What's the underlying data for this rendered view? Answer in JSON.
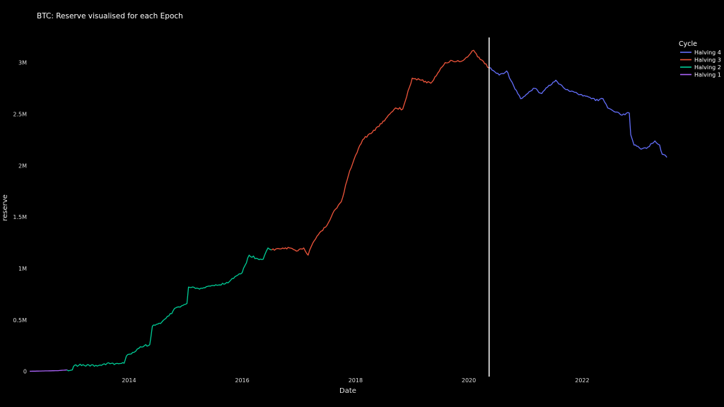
{
  "chart_data": {
    "type": "line",
    "title": "BTC: Reserve visualised for each Epoch",
    "xlabel": "Date",
    "ylabel": "reserve",
    "xlim": [
      "2012-04-01",
      "2023-08-01"
    ],
    "ylim": [
      -50000,
      3300000
    ],
    "x_ticks": [
      "2014",
      "2016",
      "2018",
      "2020",
      "2022"
    ],
    "y_ticks": [
      {
        "value": 0,
        "label": "0"
      },
      {
        "value": 500000,
        "label": "0.5M"
      },
      {
        "value": 1000000,
        "label": "1M"
      },
      {
        "value": 1500000,
        "label": "1.5M"
      },
      {
        "value": 2000000,
        "label": "2M"
      },
      {
        "value": 2500000,
        "label": "2.5M"
      },
      {
        "value": 3000000,
        "label": "3M"
      }
    ],
    "grid": false,
    "legend": {
      "title": "Cycle",
      "position": "top-right"
    },
    "vline": {
      "x": "2020-05-11",
      "color": "#ffffff"
    },
    "series": [
      {
        "name": "Halving 4",
        "color": "#636efa",
        "points": [
          [
            "2020-05-11",
            2950000
          ],
          [
            "2020-07-15",
            2880000
          ],
          [
            "2020-09-01",
            2920000
          ],
          [
            "2020-10-15",
            2780000
          ],
          [
            "2020-12-01",
            2650000
          ],
          [
            "2021-01-15",
            2700000
          ],
          [
            "2021-03-01",
            2750000
          ],
          [
            "2021-04-15",
            2700000
          ],
          [
            "2021-06-01",
            2780000
          ],
          [
            "2021-07-15",
            2830000
          ],
          [
            "2021-09-01",
            2760000
          ],
          [
            "2021-10-15",
            2720000
          ],
          [
            "2021-12-01",
            2700000
          ],
          [
            "2022-01-15",
            2680000
          ],
          [
            "2022-03-01",
            2650000
          ],
          [
            "2022-04-15",
            2630000
          ],
          [
            "2022-05-15",
            2650000
          ],
          [
            "2022-06-15",
            2560000
          ],
          [
            "2022-08-01",
            2520000
          ],
          [
            "2022-09-15",
            2490000
          ],
          [
            "2022-11-01",
            2510000
          ],
          [
            "2022-11-10",
            2300000
          ],
          [
            "2022-12-01",
            2200000
          ],
          [
            "2023-01-15",
            2160000
          ],
          [
            "2023-03-01",
            2180000
          ],
          [
            "2023-04-15",
            2240000
          ],
          [
            "2023-05-15",
            2200000
          ],
          [
            "2023-06-01",
            2110000
          ],
          [
            "2023-07-01",
            2080000
          ]
        ]
      },
      {
        "name": "Halving 3",
        "color": "#ef553b",
        "points": [
          [
            "2016-07-09",
            1180000
          ],
          [
            "2016-09-01",
            1190000
          ],
          [
            "2016-11-01",
            1200000
          ],
          [
            "2016-12-15",
            1170000
          ],
          [
            "2017-02-01",
            1200000
          ],
          [
            "2017-03-01",
            1130000
          ],
          [
            "2017-04-01",
            1250000
          ],
          [
            "2017-05-15",
            1350000
          ],
          [
            "2017-07-01",
            1420000
          ],
          [
            "2017-08-15",
            1560000
          ],
          [
            "2017-10-01",
            1650000
          ],
          [
            "2017-11-15",
            1900000
          ],
          [
            "2018-01-01",
            2100000
          ],
          [
            "2018-02-15",
            2250000
          ],
          [
            "2018-04-01",
            2310000
          ],
          [
            "2018-06-01",
            2380000
          ],
          [
            "2018-08-01",
            2490000
          ],
          [
            "2018-09-15",
            2560000
          ],
          [
            "2018-11-01",
            2550000
          ],
          [
            "2019-01-01",
            2850000
          ],
          [
            "2019-03-01",
            2830000
          ],
          [
            "2019-05-01",
            2800000
          ],
          [
            "2019-06-15",
            2900000
          ],
          [
            "2019-08-01",
            3000000
          ],
          [
            "2019-09-15",
            3020000
          ],
          [
            "2019-11-01",
            3010000
          ],
          [
            "2019-12-15",
            3050000
          ],
          [
            "2020-02-01",
            3120000
          ],
          [
            "2020-03-15",
            3030000
          ],
          [
            "2020-05-11",
            2950000
          ]
        ]
      },
      {
        "name": "Halving 2",
        "color": "#00cc96",
        "points": [
          [
            "2012-11-28",
            15000
          ],
          [
            "2013-01-01",
            15000
          ],
          [
            "2013-01-15",
            60000
          ],
          [
            "2013-06-01",
            60000
          ],
          [
            "2013-09-01",
            75000
          ],
          [
            "2013-12-01",
            80000
          ],
          [
            "2013-12-15",
            150000
          ],
          [
            "2014-01-15",
            170000
          ],
          [
            "2014-03-15",
            240000
          ],
          [
            "2014-05-15",
            260000
          ],
          [
            "2014-06-01",
            440000
          ],
          [
            "2014-08-01",
            480000
          ],
          [
            "2014-09-15",
            540000
          ],
          [
            "2014-11-01",
            620000
          ],
          [
            "2015-01-10",
            660000
          ],
          [
            "2015-01-20",
            820000
          ],
          [
            "2015-04-01",
            800000
          ],
          [
            "2015-06-01",
            830000
          ],
          [
            "2015-08-01",
            840000
          ],
          [
            "2015-10-01",
            860000
          ],
          [
            "2015-11-15",
            920000
          ],
          [
            "2016-01-01",
            960000
          ],
          [
            "2016-02-15",
            1130000
          ],
          [
            "2016-04-01",
            1100000
          ],
          [
            "2016-05-15",
            1090000
          ],
          [
            "2016-06-15",
            1200000
          ],
          [
            "2016-07-09",
            1180000
          ]
        ]
      },
      {
        "name": "Halving 1",
        "color": "#ab63fa",
        "points": [
          [
            "2012-04-01",
            2000
          ],
          [
            "2012-07-01",
            5000
          ],
          [
            "2012-10-01",
            8000
          ],
          [
            "2012-11-28",
            15000
          ]
        ]
      }
    ]
  }
}
